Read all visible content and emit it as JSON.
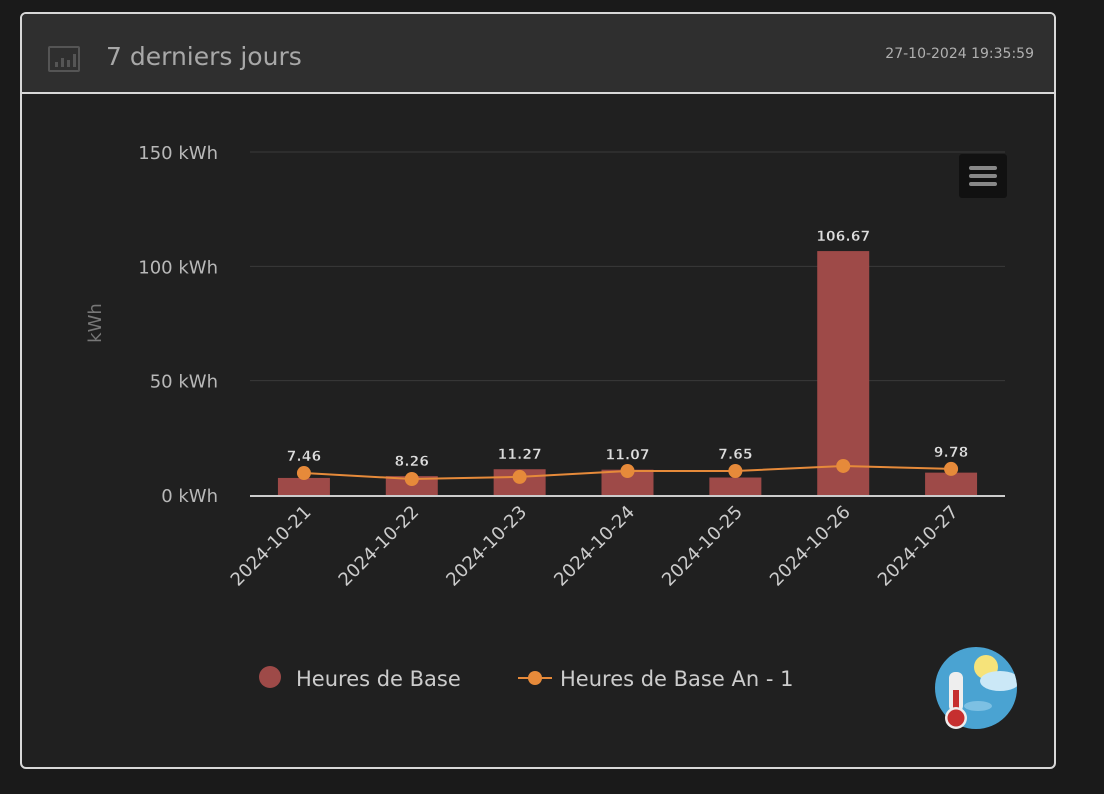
{
  "header": {
    "title": "7 derniers jours",
    "timestamp": "27-10-2024 19:35:59",
    "icon": "bar-chart-icon"
  },
  "chart_data": {
    "type": "bar",
    "title": "",
    "xlabel": "",
    "ylabel": "kWh",
    "ylim": [
      0,
      150
    ],
    "yticks": [
      "0 kWh",
      "50 kWh",
      "100 kWh",
      "150 kWh"
    ],
    "ytick_values": [
      0,
      50,
      100,
      150
    ],
    "categories": [
      "2024-10-21",
      "2024-10-22",
      "2024-10-23",
      "2024-10-24",
      "2024-10-25",
      "2024-10-26",
      "2024-10-27"
    ],
    "series": [
      {
        "name": "Heures de Base",
        "type": "bar",
        "color": "#9e4a48",
        "values": [
          7.46,
          8.26,
          11.27,
          11.07,
          7.65,
          106.67,
          9.78
        ],
        "labels": [
          "7.46",
          "8.26",
          "11.27",
          "11.07",
          "7.65",
          "106.67",
          "9.78"
        ]
      },
      {
        "name": "Heures de Base An - 1",
        "type": "line",
        "color": "#e68a3a",
        "values": [
          9.6,
          7.0,
          7.9,
          10.5,
          10.5,
          12.7,
          11.4
        ]
      }
    ],
    "legend": "bottom-center"
  },
  "weather_icon": "weather-thermometer-icon"
}
